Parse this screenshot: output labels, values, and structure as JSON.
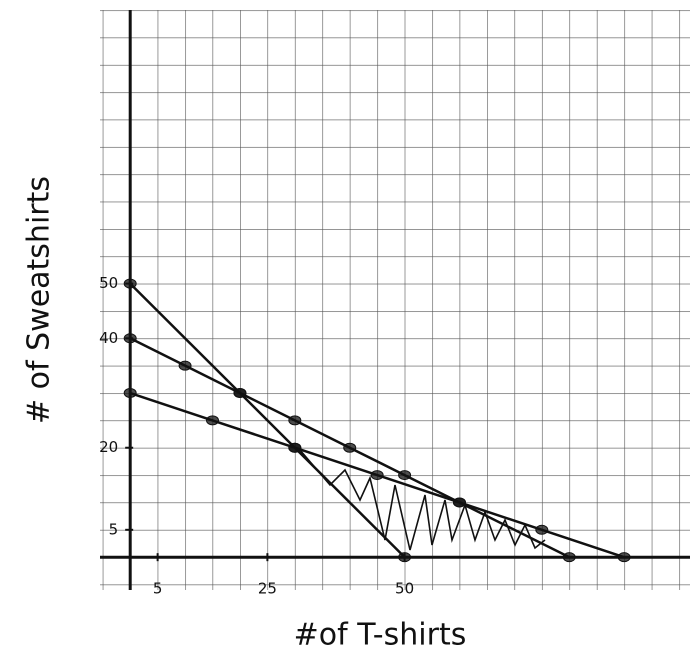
{
  "chart_data": {
    "type": "line",
    "xlabel": "#of T-shirts",
    "ylabel": "# of Sweatshirts",
    "xlim": [
      -5.5,
      102
    ],
    "ylim": [
      -6,
      100
    ],
    "xticks": [
      5,
      25,
      50
    ],
    "yticks": [
      5,
      20,
      40,
      50
    ],
    "grid": true,
    "series": [
      {
        "color": "#111111",
        "x": [
          0,
          20,
          30,
          50
        ],
        "values": [
          50,
          30,
          20,
          0
        ]
      },
      {
        "color": "#111111",
        "x": [
          0,
          10,
          20,
          30,
          40,
          50,
          60,
          75,
          90
        ],
        "values": [
          40,
          35,
          30,
          25,
          20,
          15,
          10,
          5,
          0
        ]
      },
      {
        "color": "#111111",
        "x": [
          0,
          15,
          30,
          45,
          60,
          80
        ],
        "values": [
          30,
          25,
          20,
          15,
          10,
          0
        ]
      }
    ]
  }
}
